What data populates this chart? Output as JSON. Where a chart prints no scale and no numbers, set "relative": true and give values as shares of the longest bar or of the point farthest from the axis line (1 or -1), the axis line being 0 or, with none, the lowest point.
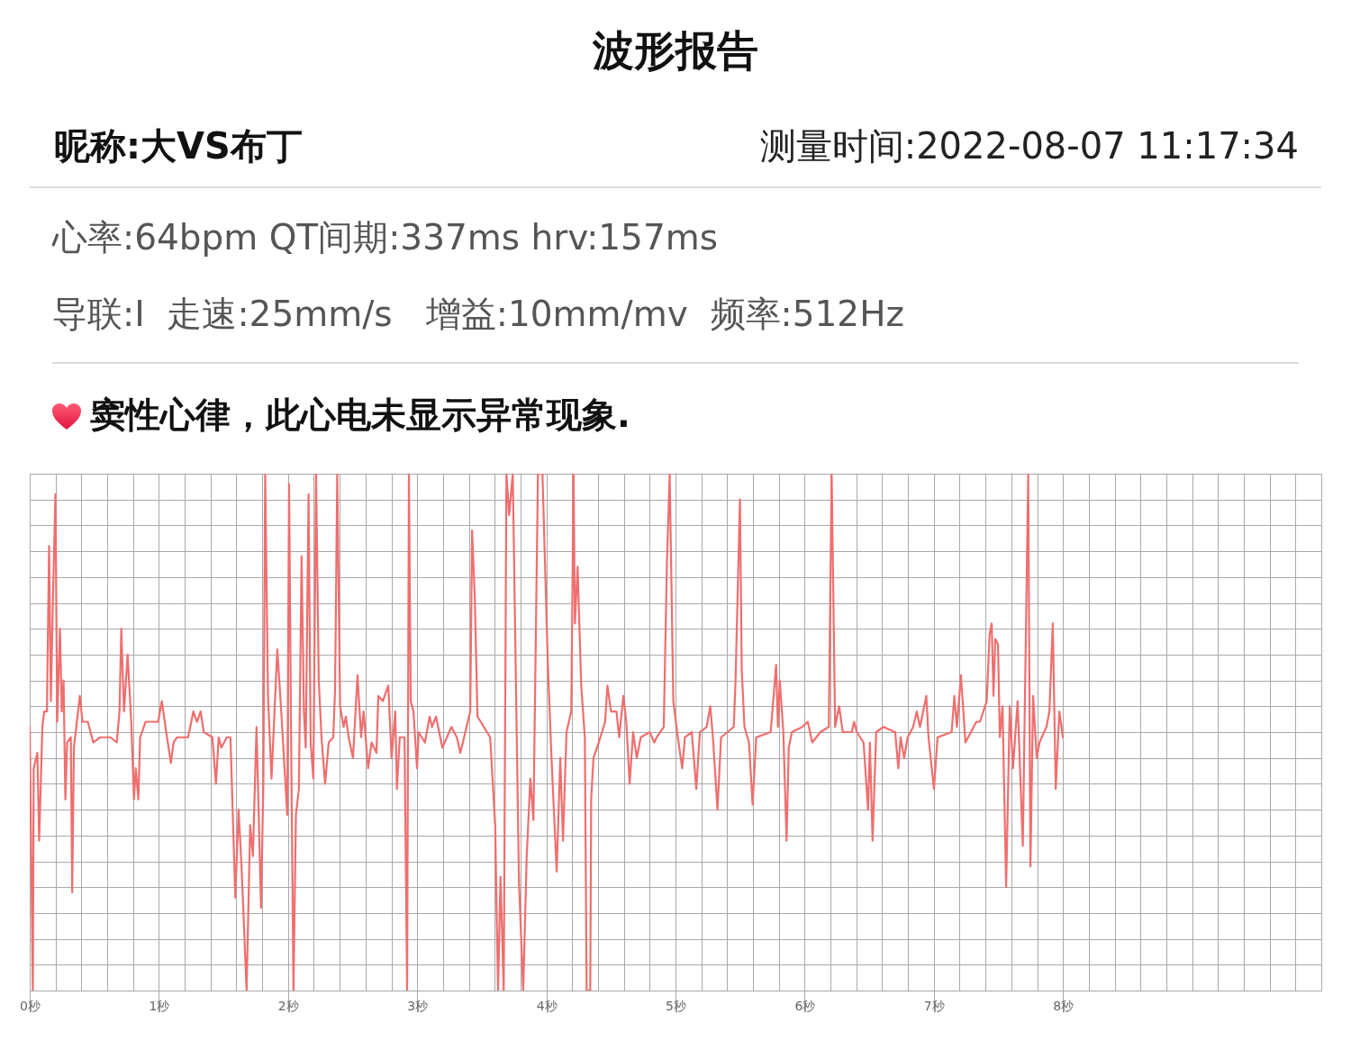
{
  "chart_data": {
    "type": "line",
    "title": "波形报告",
    "annotations": [
      "昵称:大VS布丁",
      "测量时间:2022-08-07 11:17:34",
      "心率:64bpm QT间期:337ms hrv:157ms",
      "导联:I  走速:25mm/s   增益:10mm/mv  频率:512Hz",
      "窦性心律，此心电未显示异常现象."
    ],
    "x": [
      0,
      0.024,
      0.031,
      0.059,
      0.073,
      0.098,
      0.112,
      0.133,
      0.15,
      0.164,
      0.178,
      0.199,
      0.213,
      0.234,
      0.248,
      0.262,
      0.276,
      0.29,
      0.318,
      0.329,
      0.342,
      0.388,
      0.409,
      0.45,
      0.492,
      0.548,
      0.625,
      0.674,
      0.695,
      0.709,
      0.73,
      0.758,
      0.786,
      0.807,
      0.821,
      0.841,
      0.855,
      0.897,
      0.995,
      1.023,
      1.051,
      1.093,
      1.114,
      1.142,
      1.226,
      1.267,
      1.295,
      1.323,
      1.348,
      1.414,
      1.442,
      1.463,
      1.484,
      1.526,
      1.554,
      1.592,
      1.617,
      1.638,
      1.655,
      1.679,
      1.707,
      1.728,
      1.756,
      1.791,
      1.809,
      1.823,
      1.845,
      1.872,
      1.917,
      1.945,
      1.994,
      2.008,
      2.022,
      2.042,
      2.061,
      2.084,
      2.105,
      2.123,
      2.137,
      2.159,
      2.175,
      2.196,
      2.217,
      2.238,
      2.259,
      2.287,
      2.315,
      2.35,
      2.364,
      2.381,
      2.403,
      2.43,
      2.448,
      2.469,
      2.503,
      2.538,
      2.566,
      2.585,
      2.62,
      2.647,
      2.685,
      2.699,
      2.734,
      2.776,
      2.802,
      2.83,
      2.843,
      2.865,
      2.902,
      2.922,
      2.936,
      2.95,
      2.971,
      2.999,
      3.011,
      3.06,
      3.096,
      3.115,
      3.146,
      3.195,
      3.265,
      3.307,
      3.334,
      3.411,
      3.425,
      3.446,
      3.467,
      3.565,
      3.604,
      3.626,
      3.645,
      3.67,
      3.691,
      3.712,
      3.74,
      3.788,
      3.821,
      3.848,
      3.876,
      3.9,
      3.935,
      3.97,
      4.012,
      4.04,
      4.08,
      4.108,
      4.129,
      4.156,
      4.193,
      4.211,
      4.221,
      4.242,
      4.27,
      4.298,
      4.312,
      4.34,
      4.347,
      4.365,
      4.406,
      4.455,
      4.473,
      4.501,
      4.543,
      4.564,
      4.596,
      4.619,
      4.645,
      4.672,
      4.7,
      4.731,
      4.801,
      4.836,
      4.855,
      4.909,
      4.934,
      4.955,
      4.983,
      5.018,
      5.052,
      5.073,
      5.126,
      5.161,
      5.189,
      5.241,
      5.269,
      5.29,
      5.325,
      5.353,
      5.451,
      5.465,
      5.499,
      5.513,
      5.534,
      5.569,
      5.597,
      5.625,
      5.737,
      5.779,
      5.793,
      5.807,
      5.835,
      5.86,
      5.877,
      5.901,
      5.982,
      6.024,
      6.059,
      6.121,
      6.187,
      6.209,
      6.236,
      6.267,
      6.295,
      6.365,
      6.383,
      6.404,
      6.456,
      6.491,
      6.505,
      6.526,
      6.554,
      6.61,
      6.701,
      6.725,
      6.743,
      6.77,
      6.798,
      6.84,
      6.868,
      6.893,
      6.942,
      6.959,
      7.001,
      7.029,
      7.138,
      7.159,
      7.179,
      7.21,
      7.245,
      7.329,
      7.357,
      7.41,
      7.432,
      7.448,
      7.462,
      7.476,
      7.497,
      7.511,
      7.532,
      7.56,
      7.588,
      7.613,
      7.649,
      7.689,
      7.731,
      7.748,
      7.769,
      7.797,
      7.818,
      7.872,
      7.895,
      7.921,
      7.944,
      7.972,
      8
    ],
    "series": [
      {
        "color": "#f06e6e",
        "values": [
          0.51,
          0,
          0.43,
          0.46,
          0.29,
          0.51,
          0.54,
          0.54,
          0.86,
          0.56,
          0.74,
          0.96,
          0.52,
          0.7,
          0.54,
          0.6,
          0.37,
          0.48,
          0.49,
          0.19,
          0.47,
          0.57,
          0.52,
          0.52,
          0.48,
          0.49,
          0.49,
          0.48,
          0.54,
          0.7,
          0.54,
          0.65,
          0.52,
          0.37,
          0.43,
          0.37,
          0.49,
          0.52,
          0.52,
          0.56,
          0.51,
          0.44,
          0.48,
          0.49,
          0.49,
          0.54,
          0.52,
          0.54,
          0.5,
          0.49,
          0.4,
          0.49,
          0.47,
          0.49,
          0.49,
          0.18,
          0.35,
          0.25,
          0.15,
          0,
          0.32,
          0.26,
          0.51,
          0.16,
          0.4,
          1,
          0.57,
          0.41,
          0.66,
          0.55,
          0.34,
          0.98,
          0.54,
          0,
          0.34,
          0.39,
          0.84,
          0.54,
          0.47,
          0.96,
          0.48,
          0.41,
          1,
          0.6,
          0.49,
          0.4,
          0.48,
          0.49,
          0.58,
          1,
          0.55,
          0.51,
          0.53,
          0.49,
          0.45,
          0.61,
          0.49,
          0.54,
          0.43,
          0.48,
          0.46,
          0.57,
          0.56,
          0.59,
          0.45,
          0.54,
          0.39,
          0.49,
          0.49,
          0,
          1,
          0.56,
          0.54,
          0.43,
          0.5,
          0.48,
          0.53,
          0.51,
          0.53,
          0.47,
          0.51,
          0.49,
          0.46,
          0.54,
          0.89,
          0.76,
          0.53,
          0.49,
          0.32,
          0,
          0.22,
          0,
          1,
          0.92,
          1,
          0.21,
          0,
          0.26,
          0.41,
          0.33,
          1,
          1,
          0.63,
          0.45,
          0.23,
          0.45,
          0.29,
          0.5,
          0.54,
          1,
          0.71,
          0.82,
          0.59,
          0.49,
          0,
          0,
          0.37,
          0.45,
          0.48,
          0.52,
          0.59,
          0.54,
          0.54,
          0.49,
          0.57,
          0.52,
          0.4,
          0.5,
          0.45,
          0.49,
          0.5,
          0.48,
          0.49,
          0.51,
          0.83,
          1,
          0.56,
          0.49,
          0.43,
          0.49,
          0.5,
          0.39,
          0.5,
          0.51,
          0.55,
          0.49,
          0.35,
          0.49,
          0.51,
          0.6,
          0.95,
          0.62,
          0.51,
          0.48,
          0.36,
          0.49,
          0.5,
          0.63,
          0.51,
          0.6,
          0.5,
          0.29,
          0.47,
          0.5,
          0.51,
          0.52,
          0.48,
          0.5,
          0.51,
          1,
          0.51,
          0.55,
          0.5,
          0.5,
          0.52,
          0.5,
          0.48,
          0.35,
          0.48,
          0.29,
          0.5,
          0.51,
          0.5,
          0.43,
          0.49,
          0.45,
          0.49,
          0.51,
          0.54,
          0.51,
          0.57,
          0.49,
          0.39,
          0.49,
          0.5,
          0.57,
          0.51,
          0.61,
          0.48,
          0.52,
          0.52,
          0.56,
          0.69,
          0.71,
          0.57,
          0.68,
          0.67,
          0.49,
          0.55,
          0.2,
          0.55,
          0.43,
          0.56,
          0.28,
          1,
          0.24,
          0.57,
          0.45,
          0.48,
          0.51,
          0.54,
          0.71,
          0.39,
          0.54,
          0.49
        ]
      }
    ],
    "relative": true,
    "xlim": [
      0,
      10
    ],
    "xticks": [
      {
        "value": 0,
        "label": "0秒"
      },
      {
        "value": 0.2,
        "label": null
      },
      {
        "value": 0.4,
        "label": null
      },
      {
        "value": 0.6,
        "label": null
      },
      {
        "value": 0.8,
        "label": null
      },
      {
        "value": 1,
        "label": "1秒"
      },
      {
        "value": 1.2,
        "label": null
      },
      {
        "value": 1.4,
        "label": null
      },
      {
        "value": 1.6,
        "label": null
      },
      {
        "value": 1.8,
        "label": null
      },
      {
        "value": 2,
        "label": "2秒"
      },
      {
        "value": 2.2,
        "label": null
      },
      {
        "value": 2.4,
        "label": null
      },
      {
        "value": 2.6,
        "label": null
      },
      {
        "value": 2.8,
        "label": null
      },
      {
        "value": 3,
        "label": "3秒"
      },
      {
        "value": 3.2,
        "label": null
      },
      {
        "value": 3.4,
        "label": null
      },
      {
        "value": 3.6,
        "label": null
      },
      {
        "value": 3.8,
        "label": null
      },
      {
        "value": 4,
        "label": "4秒"
      },
      {
        "value": 4.2,
        "label": null
      },
      {
        "value": 4.4,
        "label": null
      },
      {
        "value": 4.6,
        "label": null
      },
      {
        "value": 4.8,
        "label": null
      },
      {
        "value": 5,
        "label": "5秒"
      },
      {
        "value": 5.2,
        "label": null
      },
      {
        "value": 5.4,
        "label": null
      },
      {
        "value": 5.6,
        "label": null
      },
      {
        "value": 5.8,
        "label": null
      },
      {
        "value": 6,
        "label": "6秒"
      },
      {
        "value": 6.2,
        "label": null
      },
      {
        "value": 6.4,
        "label": null
      },
      {
        "value": 6.6,
        "label": null
      },
      {
        "value": 6.8,
        "label": null
      },
      {
        "value": 7,
        "label": "7秒"
      },
      {
        "value": 7.2,
        "label": null
      },
      {
        "value": 7.4,
        "label": null
      },
      {
        "value": 7.6,
        "label": null
      },
      {
        "value": 7.8,
        "label": null
      },
      {
        "value": 8,
        "label": "8秒"
      },
      {
        "value": 8.2,
        "label": null
      },
      {
        "value": 8.4,
        "label": null
      },
      {
        "value": 8.6,
        "label": null
      },
      {
        "value": 8.8,
        "label": null
      },
      {
        "value": 9,
        "label": null
      },
      {
        "value": 9.2,
        "label": null
      },
      {
        "value": 9.4,
        "label": null
      },
      {
        "value": 9.6,
        "label": null
      },
      {
        "value": 9.8,
        "label": null
      },
      {
        "value": 10,
        "label": null
      }
    ],
    "grid": true,
    "line_style": "solid"
  }
}
